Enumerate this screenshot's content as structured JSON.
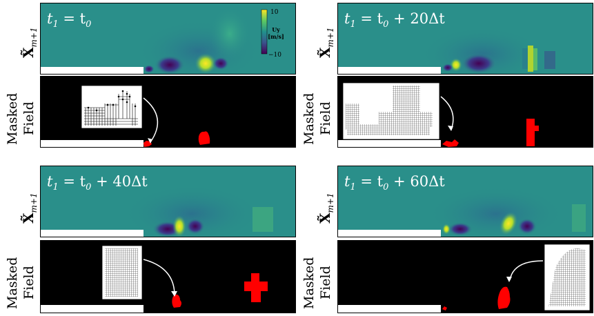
{
  "figure": {
    "row_labels": {
      "top": "X̃",
      "top_sub": "m+1",
      "bottom_line1": "Masked",
      "bottom_line2": "Field"
    },
    "colorbar": {
      "label_line1": "Uy",
      "label_line2": "[m/s]",
      "max_label": "10",
      "min_label": "−10",
      "colors": [
        "#fde725",
        "#5ec962",
        "#21918c",
        "#3b528b",
        "#440154"
      ]
    },
    "panels": [
      {
        "title_left": "t",
        "title_sub": "1",
        "title_rest": " = t",
        "title_rest_sub": "0",
        "title_tail": ""
      },
      {
        "title_left": "t",
        "title_sub": "1",
        "title_rest": " = t",
        "title_rest_sub": "0",
        "title_tail": " + 20Δt"
      },
      {
        "title_left": "t",
        "title_sub": "1",
        "title_rest": " = t",
        "title_rest_sub": "0",
        "title_tail": " + 40Δt"
      },
      {
        "title_left": "t",
        "title_sub": "1",
        "title_rest": " = t",
        "title_rest_sub": "0",
        "title_tail": " + 60Δt"
      }
    ],
    "colors": {
      "field_bg": "#2a8f8a",
      "mask_bg": "#000000",
      "mask_object": "#ff0000",
      "wall": "#ffffff"
    }
  }
}
